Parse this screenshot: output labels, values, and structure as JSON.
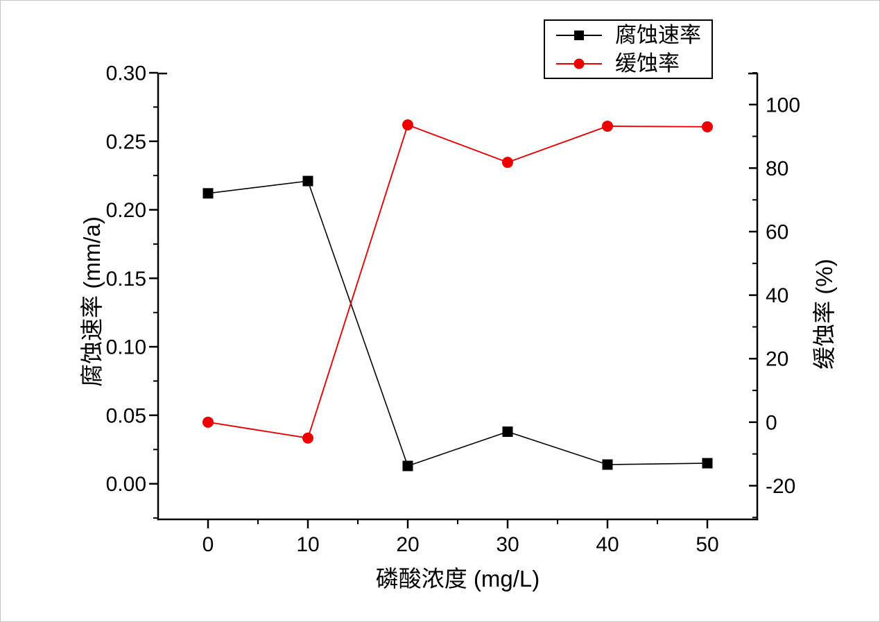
{
  "chart_data": {
    "type": "line",
    "title": "",
    "xlabel": "磷酸浓度 (mg/L)",
    "ylabel_left": "腐蚀速率 (mm/a)",
    "ylabel_right": "缓蚀率 (%)",
    "x": [
      0,
      10,
      20,
      30,
      40,
      50
    ],
    "series": [
      {
        "name": "腐蚀速率",
        "axis": "left",
        "color": "#000000",
        "marker": "square",
        "values": [
          0.212,
          0.221,
          0.013,
          0.038,
          0.014,
          0.015
        ]
      },
      {
        "name": "缓蚀率",
        "axis": "right",
        "color": "#ee0000",
        "marker": "circle",
        "values": [
          0,
          -5,
          93.6,
          81.8,
          93.2,
          93.0
        ]
      }
    ],
    "x_axis": {
      "min": -5,
      "max": 55,
      "major_ticks": [
        0,
        10,
        20,
        30,
        40,
        50
      ],
      "tick_labels": [
        "0",
        "10",
        "20",
        "30",
        "40",
        "50"
      ],
      "minor_ticks": [
        5,
        15,
        25,
        35,
        45
      ]
    },
    "y_axis_left": {
      "min": -0.026,
      "max": 0.3,
      "major_ticks": [
        0,
        0.05,
        0.1,
        0.15,
        0.2,
        0.25,
        0.3
      ],
      "tick_labels": [
        "0.00",
        "0.05",
        "0.10",
        "0.15",
        "0.20",
        "0.25",
        "0.30"
      ],
      "minor_ticks": [
        -0.025,
        0.025,
        0.075,
        0.125,
        0.175,
        0.225,
        0.275
      ]
    },
    "y_axis_right": {
      "min": -30.6,
      "max": 110,
      "major_ticks": [
        -20,
        0,
        20,
        40,
        60,
        80,
        100
      ],
      "tick_labels": [
        "-20",
        "0",
        "20",
        "40",
        "60",
        "80",
        "100"
      ],
      "minor_ticks": [
        -30,
        -10,
        10,
        30,
        50,
        70,
        90,
        110
      ]
    },
    "legend": {
      "position": "top-right",
      "entries": [
        "腐蚀速率",
        "缓蚀率"
      ]
    },
    "grid": false,
    "background": "#ffffff"
  }
}
